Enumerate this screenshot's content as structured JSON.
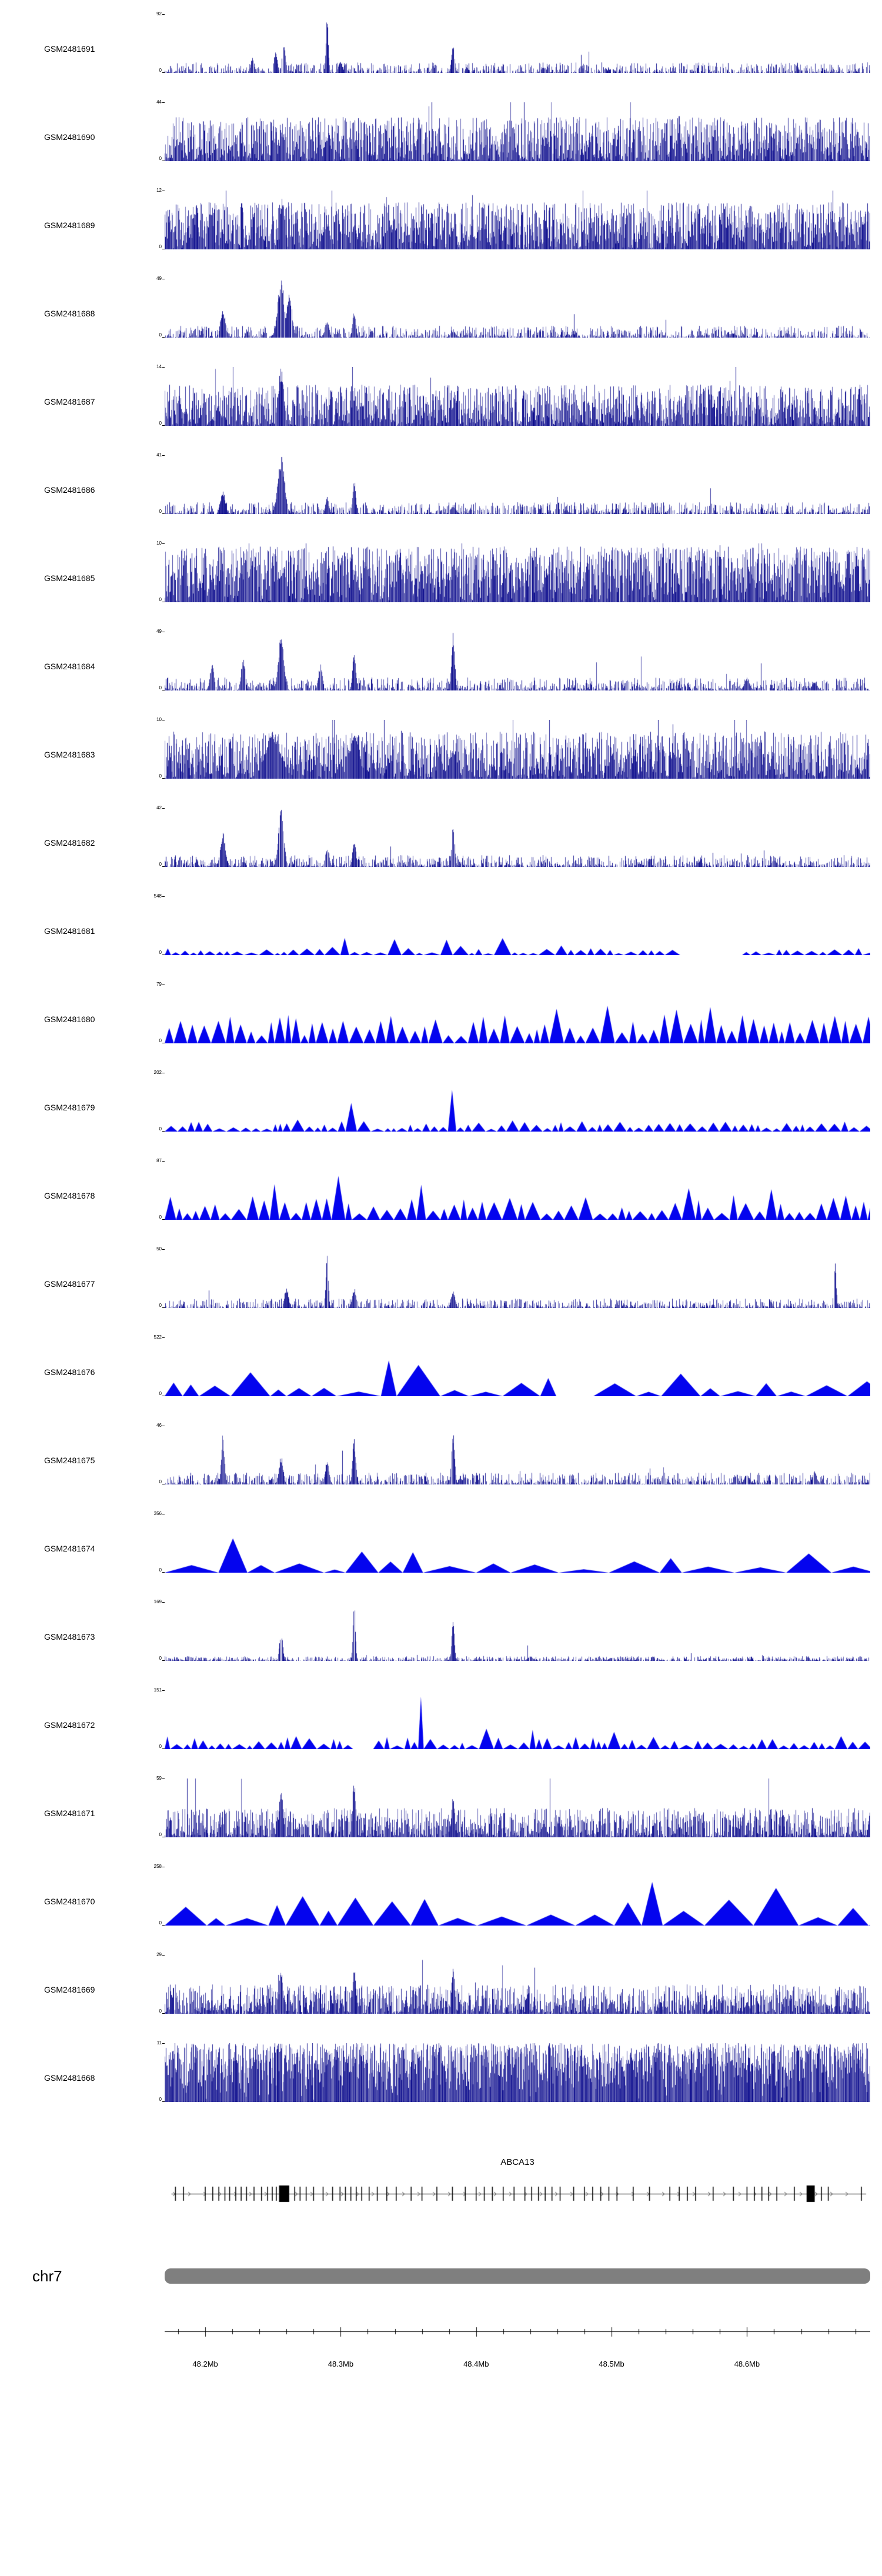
{
  "y_axis": {
    "min_label": "0"
  },
  "chart_data": {
    "type": "area",
    "title": "",
    "description": "Genome browser coverage tracks over chr7 48.17-48.69 Mb around gene ABCA13",
    "colors": {
      "histogram": "#0a0a8c",
      "polygon": "#0404ee",
      "ideogram": "#7f7f7f"
    },
    "x_axis": {
      "range": [
        48.17,
        48.691
      ],
      "unit": "Mb",
      "minor_step": 0.02,
      "ticks": [
        {
          "mb": 48.2,
          "label": "48.2Mb"
        },
        {
          "mb": 48.3,
          "label": "48.3Mb"
        },
        {
          "mb": 48.4,
          "label": "48.4Mb"
        },
        {
          "mb": 48.5,
          "label": "48.5Mb"
        },
        {
          "mb": 48.6,
          "label": "48.6Mb"
        }
      ]
    },
    "chromosome": {
      "label": "chr7"
    },
    "gene_track": {
      "name": "ABCA13",
      "span": [
        48.175,
        48.688
      ],
      "strand": "right",
      "exons": [
        48.178,
        48.184,
        48.2,
        48.2055,
        48.21,
        48.2145,
        48.218,
        48.2225,
        48.2265,
        48.2305,
        48.236,
        48.2415,
        48.246,
        48.2495,
        48.2525,
        48.266,
        48.27,
        48.2745,
        48.28,
        48.287,
        48.294,
        48.2995,
        48.3035,
        48.3075,
        48.3115,
        48.3155,
        48.321,
        48.327,
        48.334,
        48.341,
        48.352,
        48.36,
        48.371,
        48.3825,
        48.392,
        48.4,
        48.406,
        48.412,
        48.42,
        48.428,
        48.436,
        48.441,
        48.446,
        48.451,
        48.456,
        48.462,
        48.472,
        48.48,
        48.486,
        48.492,
        48.498,
        48.504,
        48.516,
        48.528,
        48.543,
        48.55,
        48.556,
        48.562,
        48.575,
        48.59,
        48.6,
        48.6055,
        48.611,
        48.616,
        48.622,
        48.635,
        48.655,
        48.66,
        48.6845
      ],
      "boxes": [
        [
          48.2545,
          0.0075
        ],
        [
          48.644,
          0.006
        ]
      ]
    },
    "tracks": [
      {
        "id": "GSM2481691",
        "ymax": 92,
        "style": "histogram",
        "base": 0.18,
        "gamma": 2.5,
        "density": 0.9,
        "seed": 11,
        "peaks": [
          [
            48.235,
            0.28,
            0.0012
          ],
          [
            48.252,
            0.38,
            0.0012
          ],
          [
            48.258,
            0.5,
            0.0012
          ],
          [
            48.29,
            1,
            0.0009
          ],
          [
            48.3,
            0.2,
            0.0015
          ],
          [
            48.383,
            0.5,
            0.0012
          ],
          [
            48.45,
            0.1,
            0.002
          ],
          [
            48.5,
            0.08,
            0.002
          ]
        ]
      },
      {
        "id": "GSM2481690",
        "ymax": 44,
        "style": "histogram",
        "base": 0.75,
        "gamma": 1.2,
        "density": 1,
        "seed": 22,
        "peaks": [
          [
            48.257,
            0.55,
            0.002
          ],
          [
            48.29,
            0.45,
            0.002
          ],
          [
            48.31,
            0.4,
            0.002
          ],
          [
            48.55,
            0.95,
            0.0008
          ]
        ]
      },
      {
        "id": "GSM2481689",
        "ymax": 12,
        "style": "histogram",
        "base": 0.8,
        "gamma": 1.0,
        "density": 1,
        "seed": 33,
        "peaks": [
          [
            48.257,
            0.95,
            0.0015
          ],
          [
            48.29,
            0.5,
            0.002
          ],
          [
            48.31,
            0.45,
            0.002
          ],
          [
            48.383,
            0.4,
            0.002
          ]
        ]
      },
      {
        "id": "GSM2481688",
        "ymax": 49,
        "style": "histogram",
        "base": 0.2,
        "gamma": 2.5,
        "density": 0.95,
        "seed": 44,
        "peaks": [
          [
            48.213,
            0.5,
            0.0018
          ],
          [
            48.256,
            1,
            0.0025
          ],
          [
            48.262,
            0.8,
            0.002
          ],
          [
            48.29,
            0.3,
            0.0015
          ],
          [
            48.31,
            0.45,
            0.0012
          ],
          [
            48.383,
            0.12,
            0.002
          ],
          [
            48.59,
            0.08,
            0.002
          ]
        ]
      },
      {
        "id": "GSM2481687",
        "ymax": 14,
        "style": "histogram",
        "base": 0.7,
        "gamma": 1.2,
        "density": 1,
        "seed": 55,
        "peaks": [
          [
            48.21,
            0.3,
            0.002
          ],
          [
            48.256,
            1,
            0.002
          ],
          [
            48.31,
            0.5,
            0.002
          ],
          [
            48.383,
            0.35,
            0.002
          ]
        ]
      },
      {
        "id": "GSM2481686",
        "ymax": 41,
        "style": "histogram",
        "base": 0.2,
        "gamma": 2.5,
        "density": 0.95,
        "seed": 66,
        "peaks": [
          [
            48.213,
            0.42,
            0.0018
          ],
          [
            48.256,
            1,
            0.0025
          ],
          [
            48.29,
            0.3,
            0.0012
          ],
          [
            48.31,
            0.6,
            0.0012
          ],
          [
            48.383,
            0.15,
            0.002
          ]
        ]
      },
      {
        "id": "GSM2481685",
        "ymax": 10,
        "style": "histogram",
        "base": 0.95,
        "gamma": 0.8,
        "density": 1,
        "seed": 77,
        "peaks": [
          [
            48.257,
            0.6,
            0.003
          ],
          [
            48.31,
            0.5,
            0.003
          ],
          [
            48.58,
            1,
            0.0006
          ]
        ]
      },
      {
        "id": "GSM2481684",
        "ymax": 49,
        "style": "histogram",
        "base": 0.22,
        "gamma": 2.5,
        "density": 0.95,
        "seed": 88,
        "peaks": [
          [
            48.205,
            0.45,
            0.0015
          ],
          [
            48.228,
            0.55,
            0.0015
          ],
          [
            48.256,
            1,
            0.002
          ],
          [
            48.285,
            0.45,
            0.0015
          ],
          [
            48.31,
            0.7,
            0.0012
          ],
          [
            48.383,
            1,
            0.0012
          ],
          [
            48.6,
            0.22,
            0.002
          ],
          [
            48.65,
            0.15,
            0.002
          ]
        ]
      },
      {
        "id": "GSM2481683",
        "ymax": 10,
        "style": "histogram",
        "base": 0.8,
        "gamma": 1.0,
        "density": 1,
        "seed": 99,
        "peaks": [
          [
            48.25,
            0.8,
            0.006
          ],
          [
            48.31,
            0.75,
            0.004
          ],
          [
            48.383,
            0.5,
            0.003
          ]
        ]
      },
      {
        "id": "GSM2481682",
        "ymax": 42,
        "style": "histogram",
        "base": 0.2,
        "gamma": 2.5,
        "density": 0.95,
        "seed": 110,
        "peaks": [
          [
            48.213,
            0.6,
            0.0018
          ],
          [
            48.256,
            1,
            0.002
          ],
          [
            48.29,
            0.35,
            0.0015
          ],
          [
            48.31,
            0.5,
            0.0012
          ],
          [
            48.383,
            0.72,
            0.0012
          ],
          [
            48.62,
            0.12,
            0.002
          ]
        ]
      },
      {
        "id": "GSM2481681",
        "ymax": 548,
        "style": "polygon",
        "pbase": 0.12,
        "tri": [
          10,
          30
        ],
        "seed": 121,
        "peaks": [
          [
            48.3,
            0.45,
            0.004
          ],
          [
            48.34,
            0.3,
            0.004
          ],
          [
            48.383,
            1,
            0.003
          ],
          [
            48.42,
            0.3,
            0.004
          ],
          [
            48.46,
            0.22,
            0.004
          ]
        ],
        "gaps": [
          [
            48.555,
            0.04
          ]
        ]
      },
      {
        "id": "GSM2481680",
        "ymax": 79,
        "style": "polygon",
        "pbase": 0.5,
        "tri": [
          10,
          26
        ],
        "seed": 132,
        "peaks": [
          [
            48.46,
            0.7,
            0.004
          ],
          [
            48.5,
            1,
            0.004
          ],
          [
            48.545,
            0.85,
            0.004
          ],
          [
            48.575,
            0.8,
            0.003
          ]
        ],
        "gaps": []
      },
      {
        "id": "GSM2481679",
        "ymax": 202,
        "style": "polygon",
        "pbase": 0.18,
        "tri": [
          8,
          24
        ],
        "seed": 143,
        "peaks": [
          [
            48.27,
            0.3,
            0.003
          ],
          [
            48.31,
            1,
            0.002
          ],
          [
            48.383,
            0.85,
            0.002
          ],
          [
            48.43,
            0.35,
            0.003
          ]
        ],
        "gaps": []
      },
      {
        "id": "GSM2481678",
        "ymax": 87,
        "style": "polygon",
        "pbase": 0.42,
        "tri": [
          10,
          28
        ],
        "seed": 154,
        "peaks": [
          [
            48.25,
            0.75,
            0.004
          ],
          [
            48.3,
            0.85,
            0.004
          ],
          [
            48.36,
            0.7,
            0.004
          ],
          [
            48.56,
            1,
            0.003
          ],
          [
            48.62,
            0.6,
            0.004
          ]
        ],
        "gaps": []
      },
      {
        "id": "GSM2481677",
        "ymax": 50,
        "style": "histogram",
        "base": 0.16,
        "gamma": 2.6,
        "density": 0.9,
        "seed": 165,
        "peaks": [
          [
            48.26,
            0.35,
            0.0015
          ],
          [
            48.29,
            1,
            0.0009
          ],
          [
            48.31,
            0.35,
            0.0015
          ],
          [
            48.383,
            0.3,
            0.0015
          ],
          [
            48.665,
            0.85,
            0.0009
          ]
        ]
      },
      {
        "id": "GSM2481676",
        "ymax": 522,
        "style": "polygon",
        "pbase": 0.3,
        "tri": [
          25,
          80
        ],
        "seed": 176,
        "peaks": [
          [
            48.24,
            0.6,
            0.008
          ],
          [
            48.33,
            0.95,
            0.006
          ],
          [
            48.36,
            0.6,
            0.006
          ],
          [
            48.45,
            0.4,
            0.006
          ],
          [
            48.55,
            0.4,
            0.006
          ]
        ],
        "gaps": [
          [
            48.47,
            0.018
          ]
        ]
      },
      {
        "id": "GSM2481675",
        "ymax": 46,
        "style": "histogram",
        "base": 0.2,
        "gamma": 2.4,
        "density": 0.95,
        "seed": 187,
        "peaks": [
          [
            48.213,
            0.85,
            0.0012
          ],
          [
            48.256,
            0.5,
            0.0015
          ],
          [
            48.29,
            0.4,
            0.0015
          ],
          [
            48.31,
            0.8,
            0.0012
          ],
          [
            48.383,
            0.9,
            0.0012
          ],
          [
            48.6,
            0.18,
            0.002
          ],
          [
            48.65,
            0.25,
            0.0015
          ]
        ]
      },
      {
        "id": "GSM2481674",
        "ymax": 356,
        "style": "polygon",
        "pbase": 0.2,
        "tri": [
          30,
          95
        ],
        "seed": 198,
        "peaks": [
          [
            48.215,
            0.72,
            0.012
          ],
          [
            48.31,
            1,
            0.004
          ],
          [
            48.35,
            0.5,
            0.005
          ],
          [
            48.39,
            0.6,
            0.005
          ],
          [
            48.42,
            0.45,
            0.005
          ],
          [
            48.46,
            0.4,
            0.005
          ],
          [
            48.55,
            0.35,
            0.01
          ],
          [
            48.64,
            0.5,
            0.008
          ]
        ],
        "gaps": [
          [
            48.28,
            0.015
          ]
        ]
      },
      {
        "id": "GSM2481673",
        "ymax": 169,
        "style": "histogram",
        "base": 0.08,
        "gamma": 2.2,
        "density": 0.9,
        "seed": 209,
        "peaks": [
          [
            48.256,
            0.55,
            0.0012
          ],
          [
            48.31,
            1,
            0.0009
          ],
          [
            48.383,
            0.8,
            0.0009
          ],
          [
            48.44,
            0.08,
            0.002
          ],
          [
            48.5,
            0.06,
            0.002
          ]
        ]
      },
      {
        "id": "GSM2481672",
        "ymax": 151,
        "style": "polygon",
        "pbase": 0.22,
        "tri": [
          9,
          26
        ],
        "seed": 220,
        "peaks": [
          [
            48.36,
            1,
            0.0025
          ],
          [
            48.41,
            0.55,
            0.003
          ],
          [
            48.44,
            0.45,
            0.003
          ],
          [
            48.5,
            0.4,
            0.003
          ],
          [
            48.55,
            0.35,
            0.003
          ]
        ],
        "gaps": [
          [
            48.31,
            0.015
          ]
        ]
      },
      {
        "id": "GSM2481671",
        "ymax": 59,
        "style": "histogram",
        "base": 0.5,
        "gamma": 1.5,
        "density": 1,
        "seed": 231,
        "peaks": [
          [
            48.256,
            0.85,
            0.0015
          ],
          [
            48.31,
            1,
            0.0012
          ],
          [
            48.383,
            0.75,
            0.0012
          ],
          [
            48.45,
            0.25,
            0.002
          ],
          [
            48.55,
            0.2,
            0.002
          ]
        ]
      },
      {
        "id": "GSM2481670",
        "ymax": 258,
        "style": "polygon",
        "pbase": 0.5,
        "tri": [
          28,
          85
        ],
        "seed": 242,
        "peaks": [
          [
            48.26,
            0.8,
            0.006
          ],
          [
            48.32,
            0.7,
            0.005
          ],
          [
            48.4,
            1,
            0.005
          ],
          [
            48.53,
            0.9,
            0.005
          ],
          [
            48.62,
            0.7,
            0.006
          ]
        ],
        "gaps": []
      },
      {
        "id": "GSM2481669",
        "ymax": 29,
        "style": "histogram",
        "base": 0.5,
        "gamma": 1.5,
        "density": 1,
        "seed": 253,
        "peaks": [
          [
            48.256,
            0.75,
            0.0015
          ],
          [
            48.31,
            0.85,
            0.0012
          ],
          [
            48.383,
            0.8,
            0.0012
          ],
          [
            48.5,
            0.25,
            0.002
          ],
          [
            48.6,
            0.2,
            0.002
          ]
        ]
      },
      {
        "id": "GSM2481668",
        "ymax": 11,
        "style": "histogram",
        "base": 1.0,
        "gamma": 0.45,
        "density": 1,
        "seed": 264,
        "peaks": []
      }
    ]
  }
}
